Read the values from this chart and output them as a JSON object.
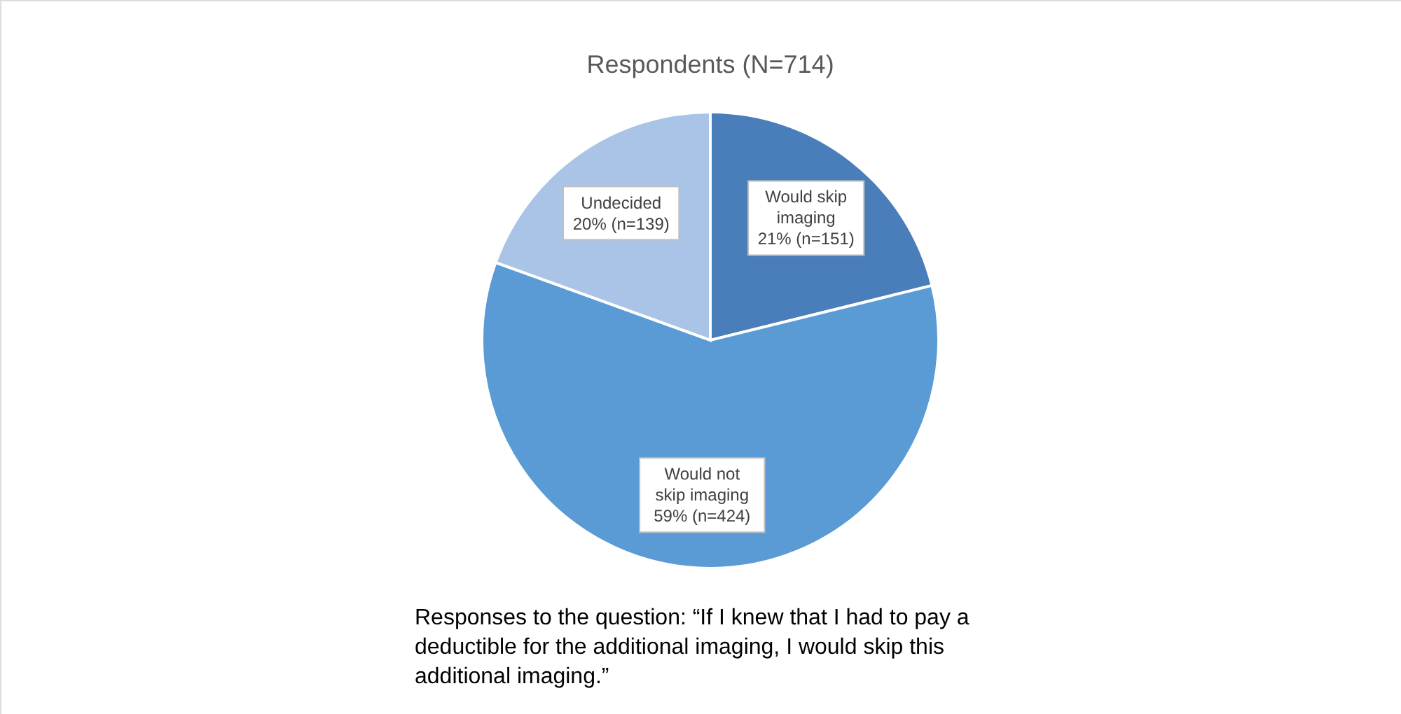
{
  "chart_data": {
    "type": "pie",
    "title": "Respondents (N=714)",
    "categories": [
      "Would skip imaging",
      "Would not skip imaging",
      "Undecided"
    ],
    "values": [
      151,
      424,
      139
    ],
    "colors": [
      "#4a7ebb",
      "#5b9bd5",
      "#a9c4e6"
    ],
    "value_labels": [
      "21% (n=151)",
      "59% (n=424)",
      "20% (n=139)"
    ],
    "annotations": [
      "Responses to the question: “If I knew that I had to pay a deductible for the additional imaging, I would skip this additional imaging.”"
    ]
  }
}
